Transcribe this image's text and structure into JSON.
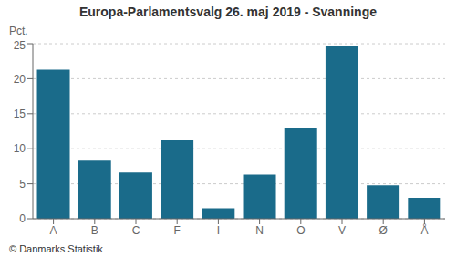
{
  "chart_data": {
    "type": "bar",
    "title": "Europa-Parlamentsvalg 26. maj 2019 - Svanninge",
    "ylabel": "Pct.",
    "categories": [
      "A",
      "B",
      "C",
      "F",
      "I",
      "N",
      "O",
      "V",
      "Ø",
      "Å"
    ],
    "values": [
      21.3,
      8.3,
      6.6,
      11.2,
      1.5,
      6.3,
      13.0,
      24.7,
      4.8,
      3.0
    ],
    "color": "#1a6b8a",
    "ylim": [
      0,
      25
    ],
    "yticks": [
      0,
      5,
      10,
      15,
      20,
      25
    ],
    "grid": true,
    "annotations": [
      "© Danmarks Statistik"
    ]
  }
}
